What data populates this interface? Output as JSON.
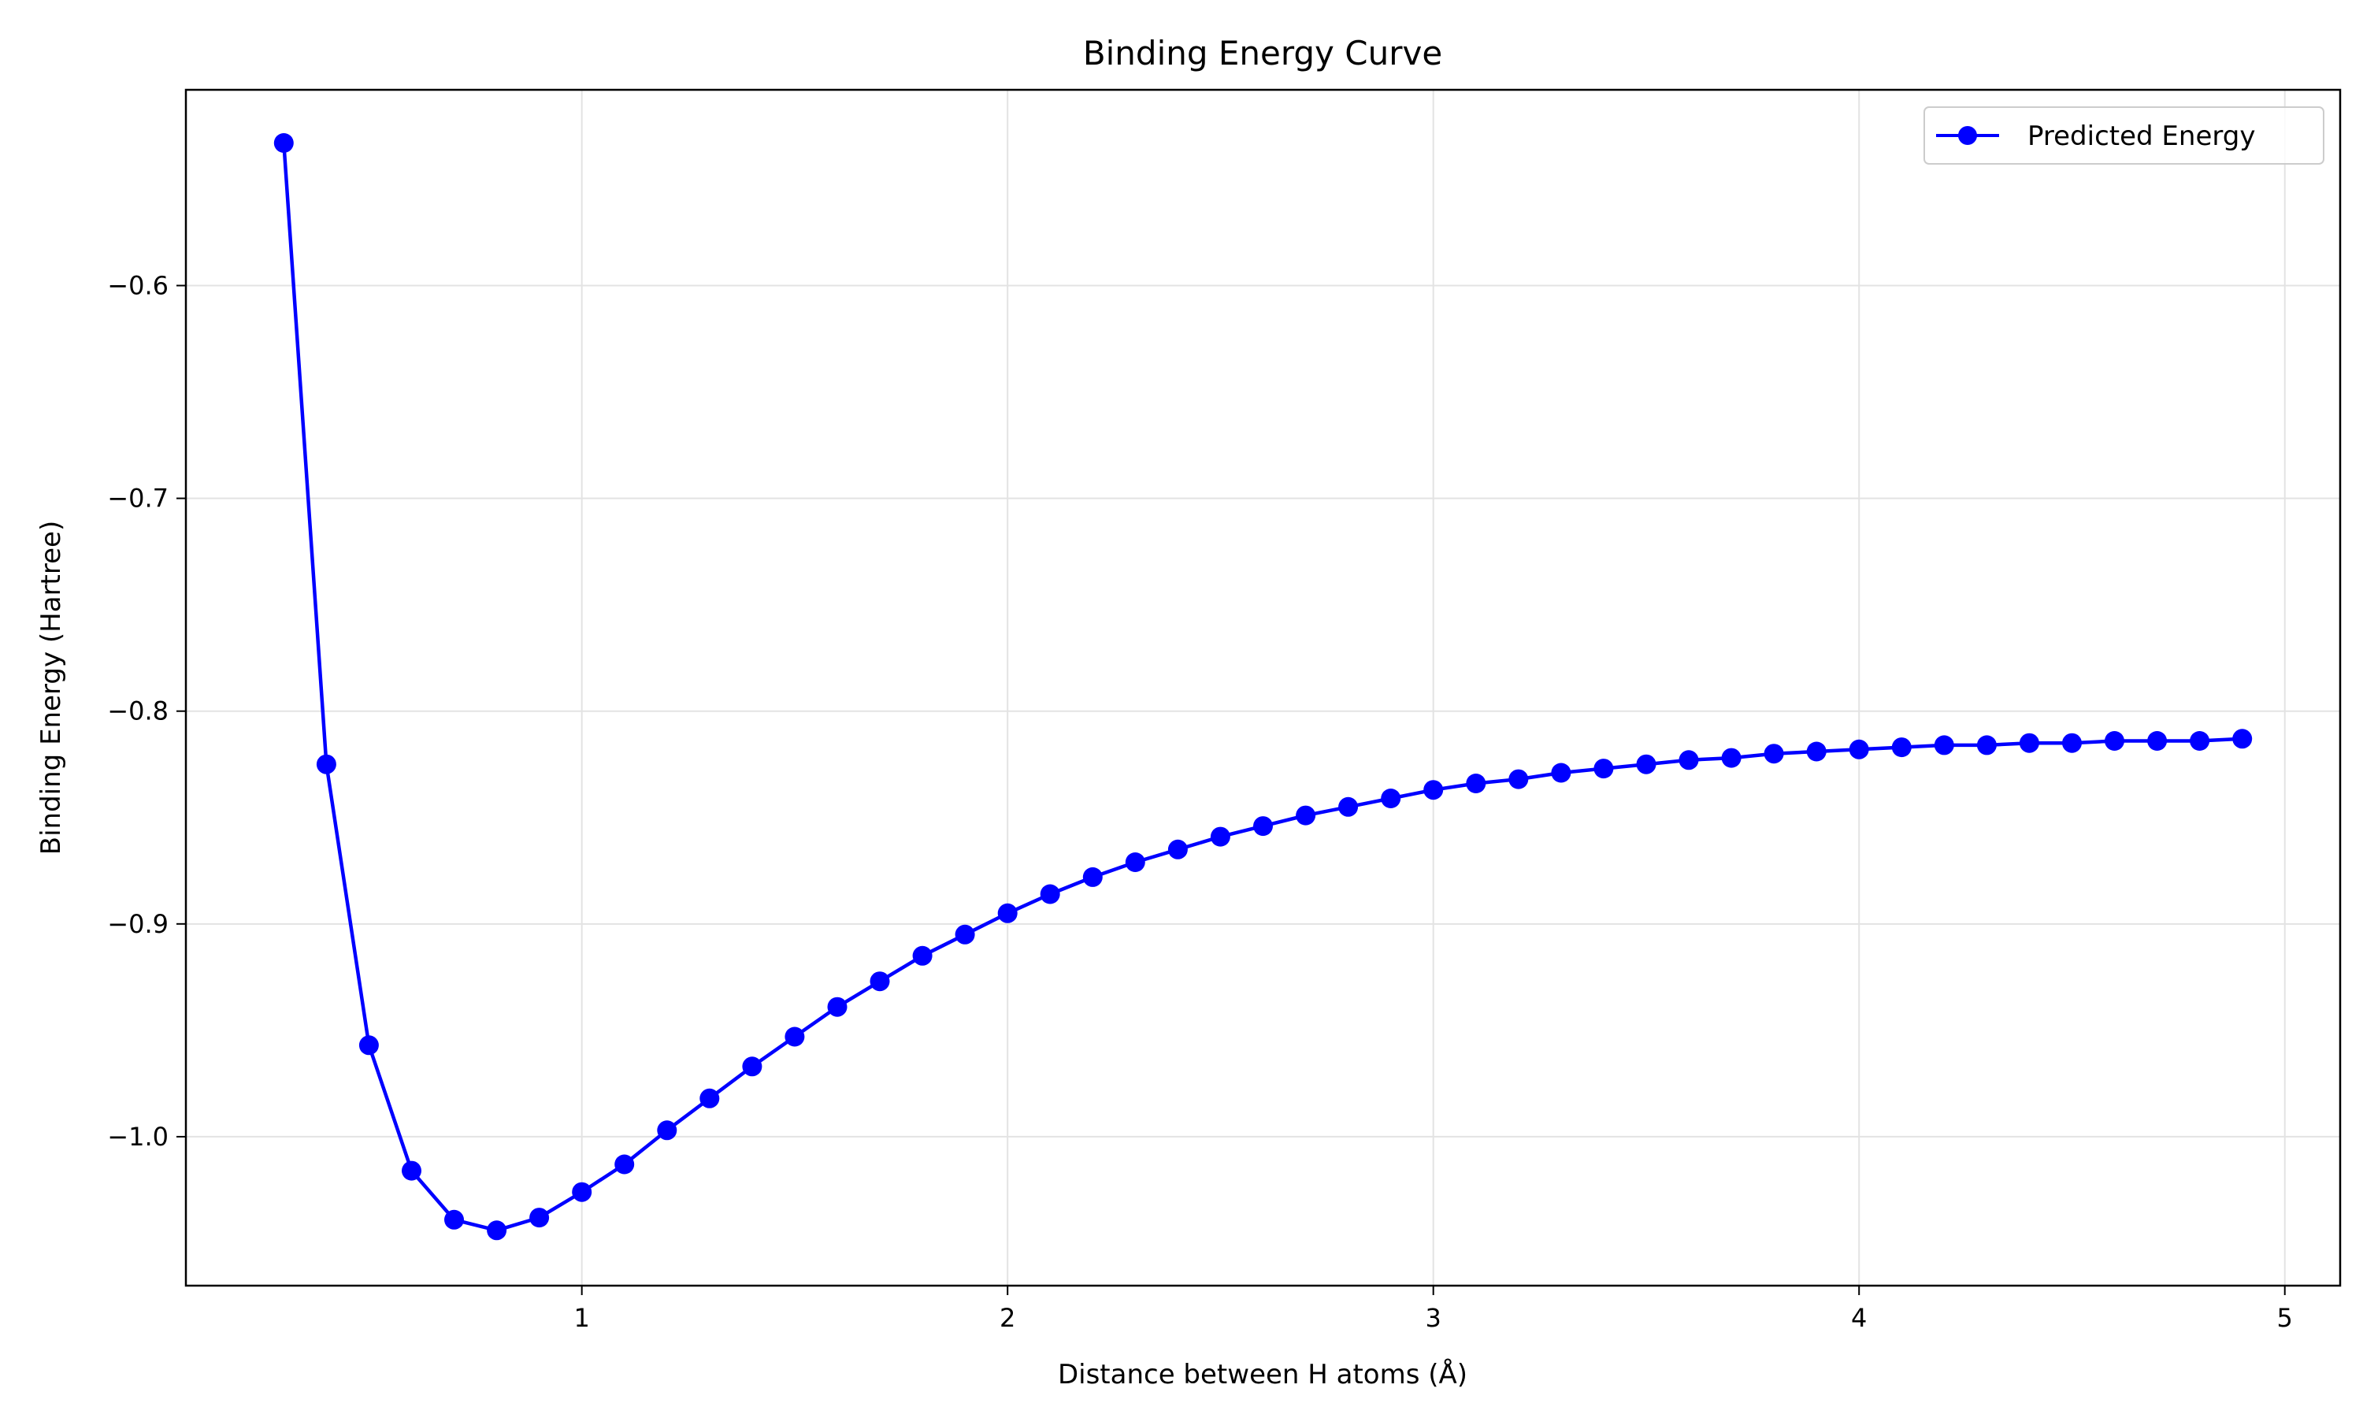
{
  "chart_data": {
    "type": "line",
    "title": "Binding Energy Curve",
    "xlabel": "Distance between H atoms (Å)",
    "ylabel": "Binding Energy (Hartree)",
    "xlim": [
      0.07,
      5.13
    ],
    "ylim": [
      -1.07,
      -0.508
    ],
    "xticks": [
      1,
      2,
      3,
      4,
      5
    ],
    "xtick_labels": [
      "1",
      "2",
      "3",
      "4",
      "5"
    ],
    "yticks": [
      -1.0,
      -0.9,
      -0.8,
      -0.7,
      -0.6
    ],
    "ytick_labels": [
      "−1.0",
      "−0.9",
      "−0.8",
      "−0.7",
      "−0.6"
    ],
    "grid": true,
    "legend_position": "top-right",
    "series": [
      {
        "name": "Predicted Energy",
        "color": "#0000ff",
        "marker": "circle",
        "x": [
          0.3,
          0.4,
          0.5,
          0.6,
          0.7,
          0.8,
          0.9,
          1.0,
          1.1,
          1.2,
          1.3,
          1.4,
          1.5,
          1.6,
          1.7,
          1.8,
          1.9,
          2.0,
          2.1,
          2.2,
          2.3,
          2.4,
          2.5,
          2.6,
          2.7,
          2.8,
          2.9,
          3.0,
          3.1,
          3.2,
          3.3,
          3.4,
          3.5,
          3.6,
          3.7,
          3.8,
          3.9,
          4.0,
          4.1,
          4.2,
          4.3,
          4.4,
          4.5,
          4.6,
          4.7,
          4.8,
          4.9
        ],
        "y": [
          -0.533,
          -0.825,
          -0.957,
          -1.016,
          -1.039,
          -1.044,
          -1.038,
          -1.026,
          -1.013,
          -0.997,
          -0.982,
          -0.967,
          -0.953,
          -0.939,
          -0.927,
          -0.915,
          -0.905,
          -0.895,
          -0.886,
          -0.878,
          -0.871,
          -0.865,
          -0.859,
          -0.854,
          -0.849,
          -0.845,
          -0.841,
          -0.837,
          -0.834,
          -0.832,
          -0.829,
          -0.827,
          -0.825,
          -0.823,
          -0.822,
          -0.82,
          -0.819,
          -0.818,
          -0.817,
          -0.816,
          -0.816,
          -0.815,
          -0.815,
          -0.814,
          -0.814,
          -0.814,
          -0.813
        ]
      }
    ]
  }
}
